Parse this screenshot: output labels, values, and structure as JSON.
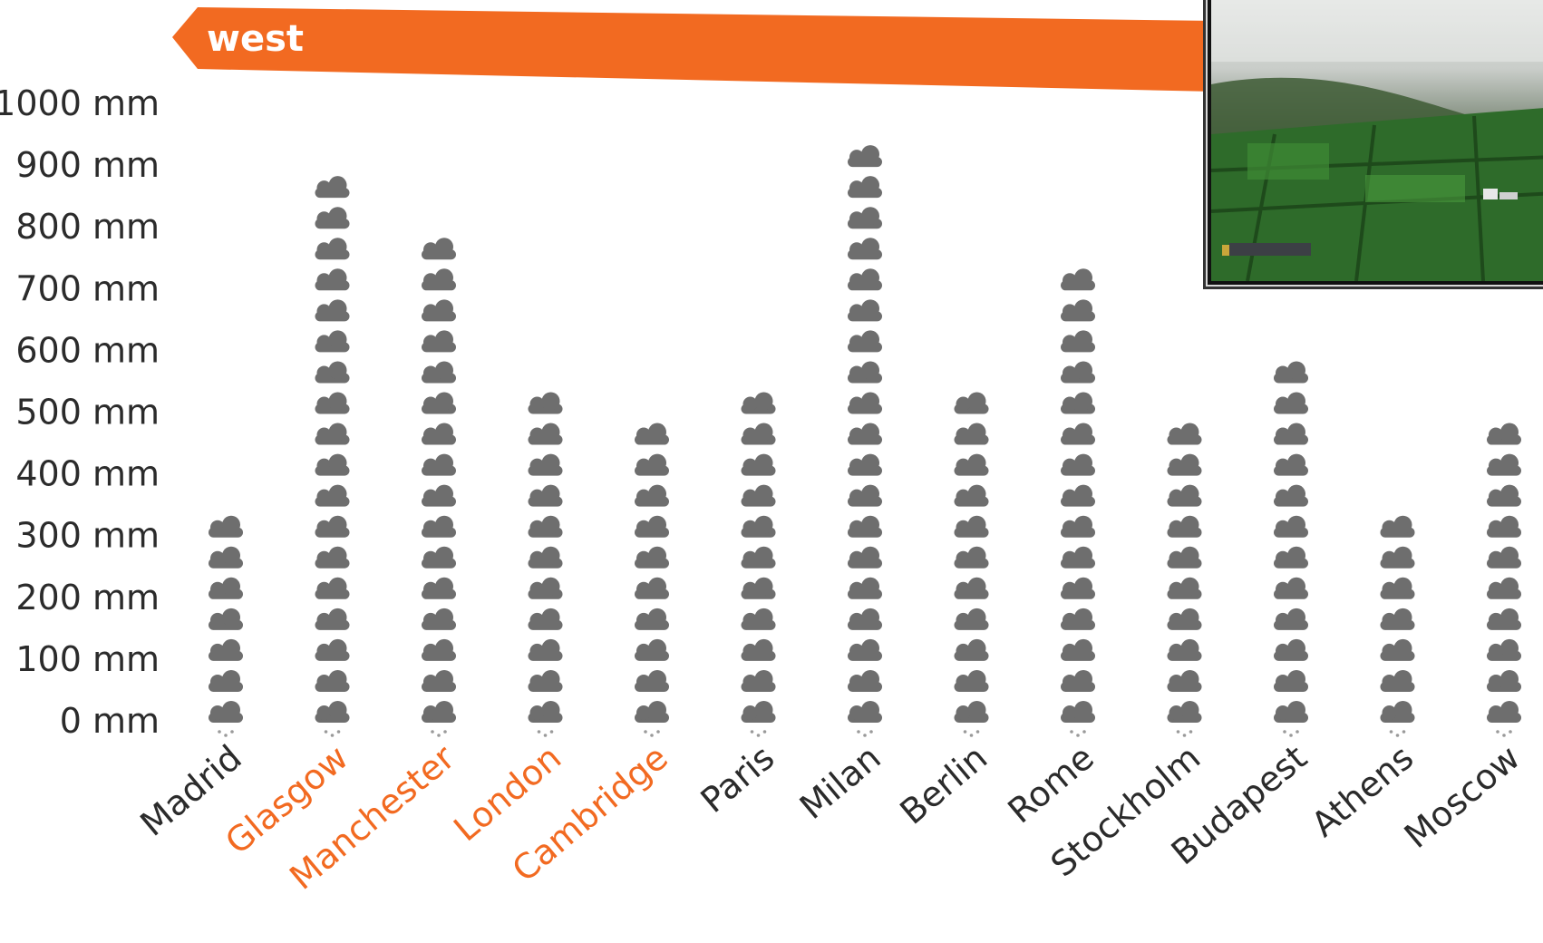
{
  "banner": {
    "label": "west",
    "color": "#f26a21"
  },
  "photo": {
    "description_icon": "misty-green-hillside-photo"
  },
  "colors": {
    "cloud": "#6e6e6e",
    "drop": "#9a9a9a",
    "axis_text": "#2b2b2b",
    "highlight_city": "#f26a21",
    "normal_city": "#2b2b2b"
  },
  "chart_data": {
    "type": "bar",
    "style": "pictogram (stacked rain-cloud icons, one icon ≈ 50 mm)",
    "ylim": [
      0,
      1000
    ],
    "yticks": [
      "0 mm",
      "100 mm",
      "200 mm",
      "300 mm",
      "400 mm",
      "500 mm",
      "600 mm",
      "700 mm",
      "800 mm",
      "900 mm",
      "1000 mm"
    ],
    "ytick_values": [
      0,
      100,
      200,
      300,
      400,
      500,
      600,
      700,
      800,
      900,
      1000
    ],
    "unit": "mm",
    "categories": [
      "Madrid",
      "Glasgow",
      "Manchester",
      "London",
      "Cambridge",
      "Paris",
      "Milan",
      "Berlin",
      "Rome",
      "Stockholm",
      "Budapest",
      "Athens",
      "Moscow"
    ],
    "highlighted": [
      false,
      true,
      true,
      true,
      true,
      false,
      false,
      false,
      false,
      false,
      false,
      false,
      false
    ],
    "values": [
      350,
      900,
      800,
      550,
      500,
      550,
      950,
      550,
      750,
      500,
      600,
      350,
      500
    ],
    "grid": false,
    "legend": "none"
  }
}
